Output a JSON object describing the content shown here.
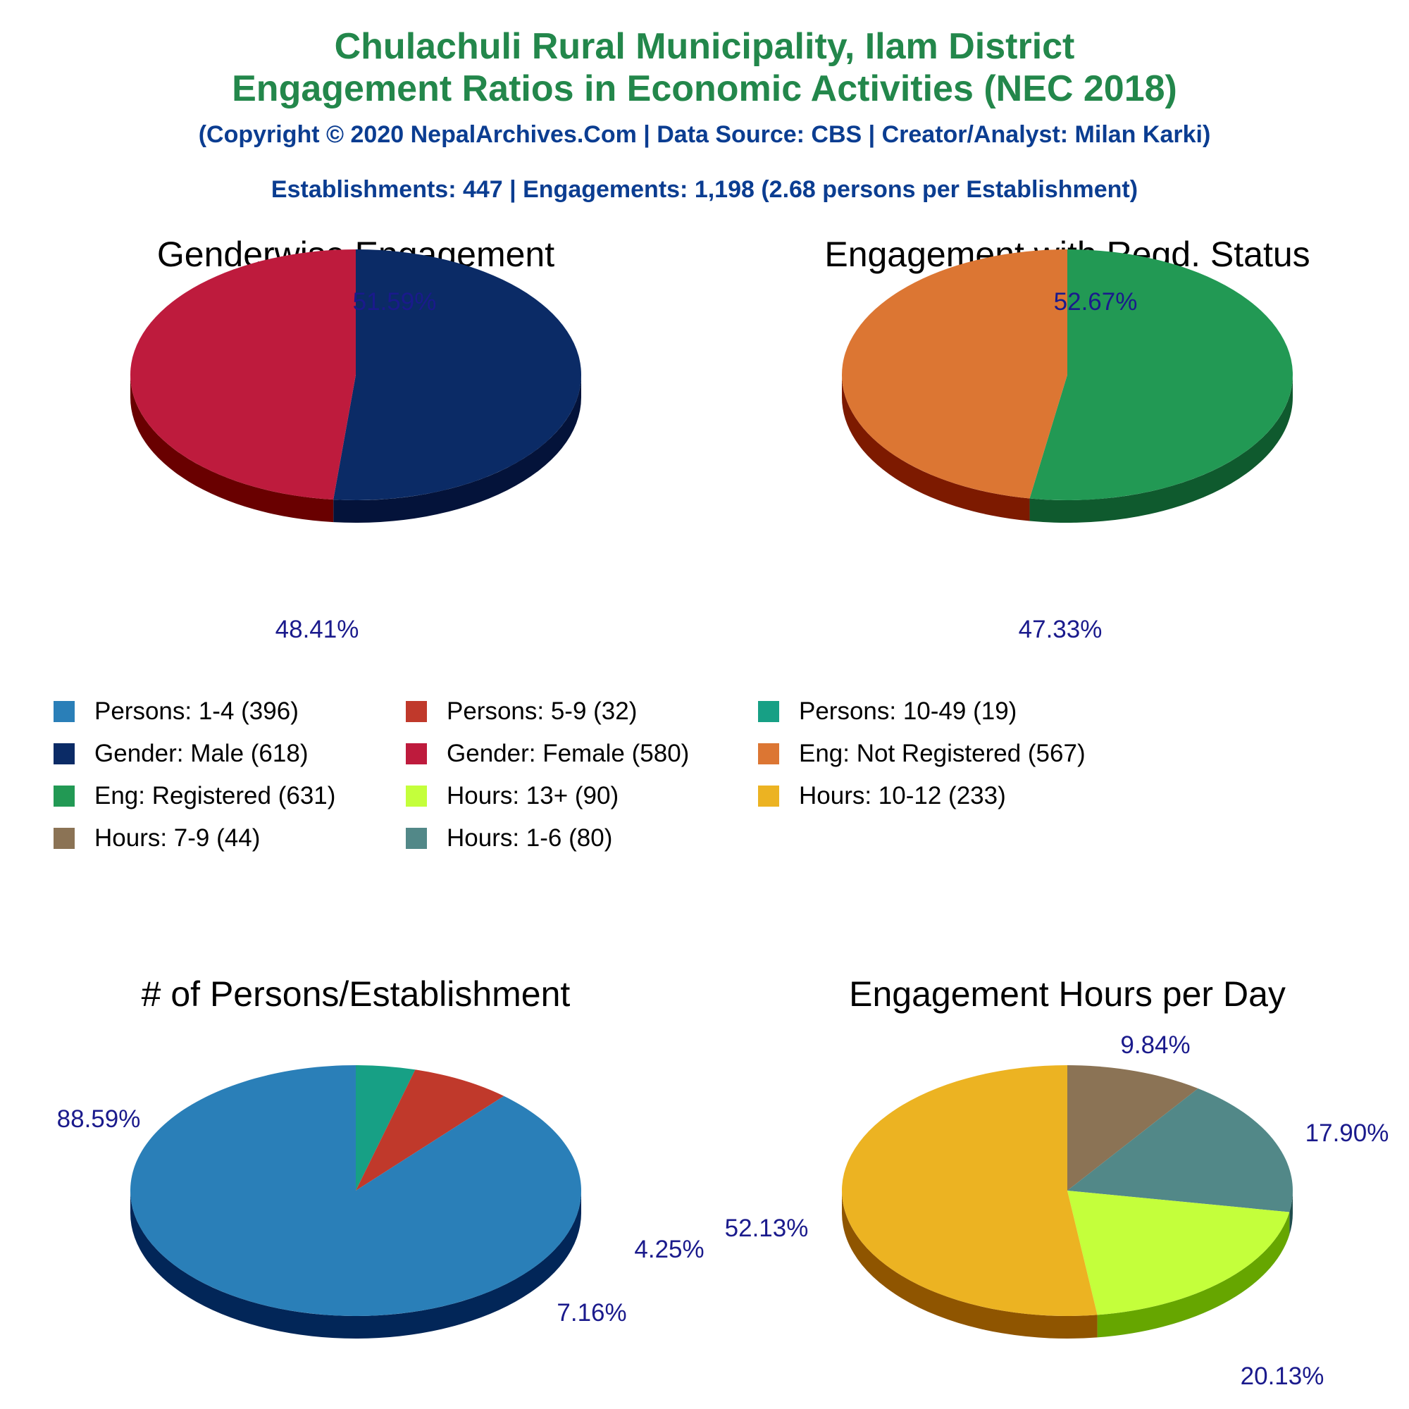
{
  "header": {
    "title_line1": "Chulachuli Rural Municipality, Ilam District",
    "title_line2": "Engagement Ratios in Economic Activities (NEC 2018)",
    "copyright": "(Copyright © 2020 NepalArchives.Com | Data Source: CBS | Creator/Analyst: Milan Karki)",
    "summary": "Establishments: 447 | Engagements: 1,198 (2.68 persons per Establishment)"
  },
  "colors": {
    "title": "#23874b",
    "subtitle": "#0b3d91",
    "percent_label": "#1a1a8c"
  },
  "legend": [
    {
      "label": "Persons: 1-4 (396)",
      "color": "#2a7fb8"
    },
    {
      "label": "Persons: 5-9 (32)",
      "color": "#c0392b"
    },
    {
      "label": "Persons: 10-49 (19)",
      "color": "#17a085"
    },
    {
      "label": "Gender: Male (618)",
      "color": "#0b2b66"
    },
    {
      "label": "Gender: Female (580)",
      "color": "#be1b3d"
    },
    {
      "label": "Eng: Not Registered (567)",
      "color": "#dc7633"
    },
    {
      "label": "Eng: Registered (631)",
      "color": "#229954"
    },
    {
      "label": "Hours: 13+ (90)",
      "color": "#c4ff3b"
    },
    {
      "label": "Hours: 10-12 (233)",
      "color": "#ecb322"
    },
    {
      "label": "Hours: 7-9 (44)",
      "color": "#8b7355"
    },
    {
      "label": "Hours: 1-6 (80)",
      "color": "#528888"
    }
  ],
  "chart_data": [
    {
      "type": "pie",
      "title": "Genderwise Engagement",
      "slices": [
        {
          "name": "Gender: Male",
          "value": 618,
          "percent_label": "51.59%",
          "color": "#0b2b66",
          "side_color": "#04133a"
        },
        {
          "name": "Gender: Female",
          "value": 580,
          "percent_label": "48.41%",
          "color": "#be1b3d",
          "side_color": "#690000"
        }
      ]
    },
    {
      "type": "pie",
      "title": "Engagement with Regd. Status",
      "slices": [
        {
          "name": "Eng: Registered",
          "value": 631,
          "percent_label": "52.67%",
          "color": "#229954",
          "side_color": "#0f5a2e"
        },
        {
          "name": "Eng: Not Registered",
          "value": 567,
          "percent_label": "47.33%",
          "color": "#dc7633",
          "side_color": "#7d1a00"
        }
      ]
    },
    {
      "type": "pie",
      "title": "# of Persons/Establishment",
      "slices": [
        {
          "name": "Persons: 10-49",
          "value": 19,
          "percent_label": "4.25%",
          "color": "#17a085",
          "side_color": "#0a4a3a"
        },
        {
          "name": "Persons: 5-9",
          "value": 32,
          "percent_label": "7.16%",
          "color": "#c0392b",
          "side_color": "#6a0000"
        },
        {
          "name": "Persons: 1-4",
          "value": 396,
          "percent_label": "88.59%",
          "color": "#2a7fb8",
          "side_color": "#022658"
        }
      ]
    },
    {
      "type": "pie",
      "title": "Engagement Hours per Day",
      "slices": [
        {
          "name": "Hours: 7-9",
          "value": 44,
          "percent_label": "9.84%",
          "color": "#8b7355",
          "side_color": "#4f3d24"
        },
        {
          "name": "Hours: 1-6",
          "value": 80,
          "percent_label": "17.90%",
          "color": "#528888",
          "side_color": "#1f4d4d"
        },
        {
          "name": "Hours: 13+",
          "value": 90,
          "percent_label": "20.13%",
          "color": "#c4ff3b",
          "side_color": "#66a600"
        },
        {
          "name": "Hours: 10-12",
          "value": 233,
          "percent_label": "52.13%",
          "color": "#ecb322",
          "side_color": "#8f5500"
        }
      ]
    }
  ]
}
